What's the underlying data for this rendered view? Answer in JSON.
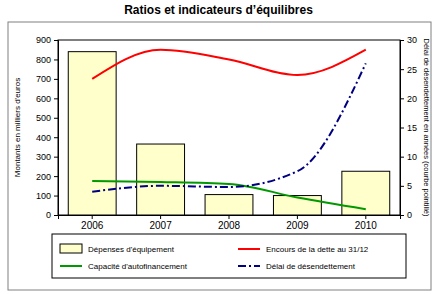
{
  "chart_data": {
    "type": "bar",
    "title": "Ratios et indicateurs d’équilibres",
    "categories": [
      "2006",
      "2007",
      "2008",
      "2009",
      "2010"
    ],
    "y_label": "Montants en milliers d'euros",
    "y2_label": "Délai de désendettement  en années (courbe pointillé)",
    "ylim": [
      0,
      900
    ],
    "yticks": [
      0,
      100,
      200,
      300,
      400,
      500,
      600,
      700,
      800,
      900
    ],
    "y2lim": [
      0,
      30
    ],
    "y2ticks": [
      0,
      5,
      10,
      15,
      20,
      25,
      30
    ],
    "grid": false,
    "legend": "bottom",
    "series": [
      {
        "name": "Dépenses d'équipement",
        "type": "bar",
        "color": "#ffffcc",
        "values": [
          840,
          365,
          105,
          100,
          225
        ]
      },
      {
        "name": "Encours de la dette au 31/12",
        "type": "line",
        "color": "#ff0000",
        "line_style": "solid",
        "values": [
          700,
          850,
          800,
          720,
          850
        ]
      },
      {
        "name": "Capacité d'autofinancement",
        "type": "line",
        "color": "#009900",
        "line_style": "solid",
        "values": [
          175,
          170,
          160,
          90,
          30
        ]
      },
      {
        "name": "Délai de désendettement",
        "type": "line",
        "color": "#000080",
        "line_style": "dashdot",
        "axis": "y2",
        "values": [
          4,
          5,
          4.8,
          7.5,
          26
        ]
      }
    ]
  }
}
